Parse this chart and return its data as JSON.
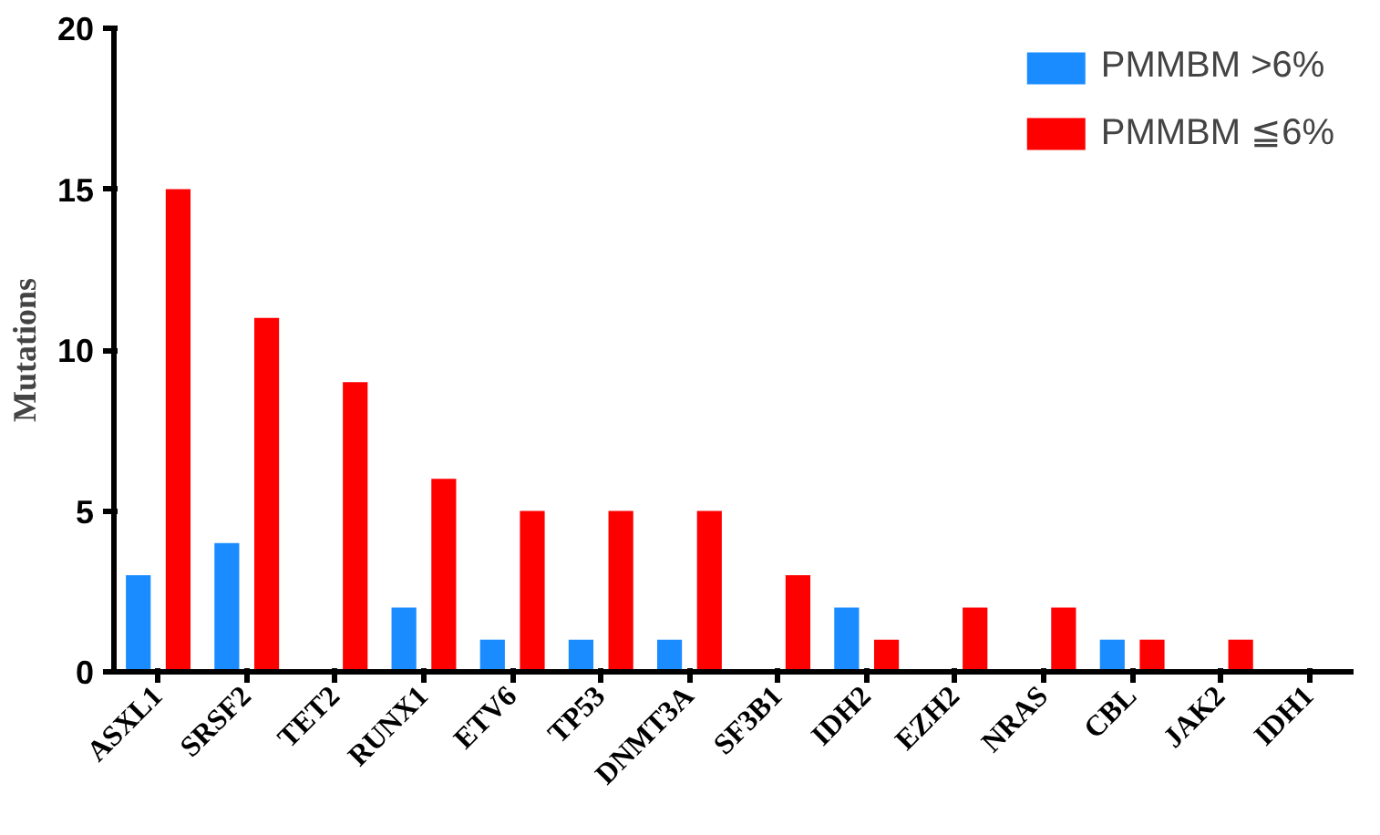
{
  "chart_data": {
    "type": "bar",
    "ylabel": "Mutations",
    "categories": [
      "ASXL1",
      "SRSF2",
      "TET2",
      "RUNX1",
      "ETV6",
      "TP53",
      "DNMT3A",
      "SF3B1",
      "IDH2",
      "EZH2",
      "NRAS",
      "CBL",
      "JAK2",
      "IDH1"
    ],
    "series": [
      {
        "name": "PMMBM >6%",
        "color": "#1a8cff",
        "values": [
          3,
          4,
          0,
          2,
          1,
          1,
          1,
          0,
          2,
          0,
          0,
          1,
          0,
          0
        ]
      },
      {
        "name": "PMMBM ≦6%",
        "color": "#ff0000",
        "values": [
          15,
          11,
          9,
          6,
          5,
          5,
          5,
          3,
          1,
          2,
          2,
          1,
          1,
          0
        ]
      }
    ],
    "ylim": [
      0,
      20
    ],
    "yticks": [
      0,
      5,
      10,
      15,
      20
    ],
    "grid": false,
    "legend": "top right"
  }
}
